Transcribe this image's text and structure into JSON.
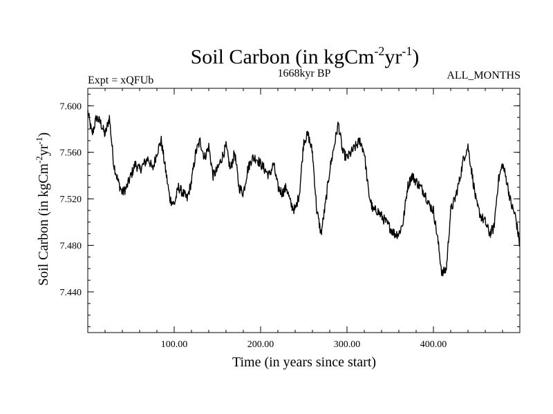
{
  "chart_data": {
    "type": "line",
    "title": {
      "prefix": "Soil Carbon (in kgCm",
      "exp1": "-2",
      "mid": "yr",
      "exp2": "-1",
      "suffix": ")"
    },
    "subtitle_left": "Expt = xQFUb",
    "subtitle_center": "1668kyr BP",
    "subtitle_right": "ALL_MONTHS",
    "xlabel": "Time (in years since start)",
    "ylabel": {
      "prefix": "Soil Carbon (in kgCm",
      "exp1": "-2",
      "mid": "yr",
      "exp2": "-1",
      "suffix": ")"
    },
    "xlim": [
      0,
      500
    ],
    "ylim": [
      7.405,
      7.615
    ],
    "x_ticks": [
      100,
      200,
      300,
      400
    ],
    "x_tick_labels": [
      "100.00",
      "200.00",
      "300.00",
      "400.00"
    ],
    "y_ticks": [
      7.44,
      7.48,
      7.52,
      7.56,
      7.6
    ],
    "y_tick_labels": [
      "7.440",
      "7.480",
      "7.520",
      "7.560",
      "7.600"
    ],
    "x_minor_step": 20,
    "y_minor_step": 0.01,
    "series": [
      {
        "name": "Soil Carbon",
        "color": "#000000",
        "noise": 0.0045,
        "x": [
          0,
          5,
          10,
          15,
          20,
          25,
          30,
          35,
          40,
          45,
          50,
          55,
          60,
          65,
          70,
          75,
          80,
          85,
          90,
          95,
          100,
          105,
          110,
          115,
          120,
          125,
          130,
          135,
          140,
          145,
          150,
          155,
          160,
          165,
          170,
          175,
          180,
          185,
          190,
          195,
          200,
          205,
          210,
          215,
          220,
          225,
          230,
          235,
          240,
          245,
          250,
          255,
          260,
          265,
          270,
          275,
          280,
          285,
          290,
          295,
          300,
          305,
          310,
          315,
          320,
          325,
          330,
          335,
          340,
          345,
          350,
          355,
          360,
          365,
          370,
          375,
          380,
          385,
          390,
          395,
          400,
          405,
          410,
          415,
          420,
          425,
          430,
          435,
          440,
          445,
          450,
          455,
          460,
          465,
          470,
          475,
          480,
          485,
          490,
          495,
          500
        ],
        "values": [
          7.595,
          7.575,
          7.59,
          7.585,
          7.575,
          7.59,
          7.55,
          7.535,
          7.525,
          7.53,
          7.54,
          7.55,
          7.545,
          7.55,
          7.555,
          7.545,
          7.56,
          7.57,
          7.545,
          7.52,
          7.515,
          7.53,
          7.525,
          7.52,
          7.535,
          7.56,
          7.57,
          7.555,
          7.565,
          7.54,
          7.545,
          7.555,
          7.565,
          7.545,
          7.56,
          7.53,
          7.525,
          7.545,
          7.555,
          7.555,
          7.55,
          7.545,
          7.54,
          7.55,
          7.53,
          7.525,
          7.53,
          7.515,
          7.51,
          7.525,
          7.57,
          7.575,
          7.56,
          7.51,
          7.49,
          7.515,
          7.545,
          7.565,
          7.585,
          7.56,
          7.555,
          7.56,
          7.565,
          7.57,
          7.56,
          7.525,
          7.51,
          7.51,
          7.505,
          7.5,
          7.495,
          7.49,
          7.49,
          7.5,
          7.53,
          7.54,
          7.535,
          7.53,
          7.525,
          7.515,
          7.51,
          7.485,
          7.455,
          7.46,
          7.51,
          7.52,
          7.535,
          7.555,
          7.565,
          7.54,
          7.515,
          7.505,
          7.5,
          7.49,
          7.495,
          7.535,
          7.55,
          7.535,
          7.515,
          7.505,
          7.48
        ]
      }
    ]
  }
}
